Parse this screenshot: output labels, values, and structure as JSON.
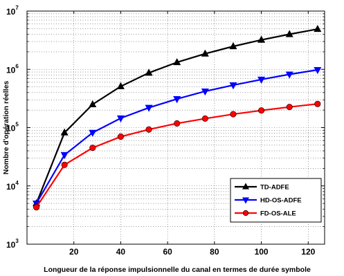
{
  "chart_data": {
    "type": "line",
    "title": "",
    "xlabel": "Longueur de la réponse impulsionnelle du canal en termes de durée symbole",
    "ylabel": "Nombre d'opération réelles",
    "xlim": [
      0,
      127
    ],
    "ylim": [
      1000,
      10000000
    ],
    "yscale": "log",
    "grid": true,
    "legend_position": "lower-right",
    "xticks": [
      20,
      40,
      60,
      80,
      100,
      120
    ],
    "yticks": [
      {
        "value": 1000,
        "base": "10",
        "exp": "3"
      },
      {
        "value": 10000,
        "base": "10",
        "exp": "4"
      },
      {
        "value": 100000,
        "base": "10",
        "exp": "5"
      },
      {
        "value": 1000000,
        "base": "10",
        "exp": "6"
      },
      {
        "value": 10000000,
        "base": "10",
        "exp": "7"
      }
    ],
    "x": [
      4,
      16,
      28,
      40,
      52,
      64,
      76,
      88,
      100,
      112,
      124
    ],
    "series": [
      {
        "name": "TD-ADFE",
        "color": "#000000",
        "marker": "triangle-up",
        "values": [
          5000,
          82000,
          250000,
          510000,
          870000,
          1320000,
          1850000,
          2480000,
          3200000,
          4000000,
          4900000
        ]
      },
      {
        "name": "HD-OS-ADFE",
        "color": "#0000ff",
        "marker": "triangle-down",
        "values": [
          5000,
          34000,
          82000,
          145000,
          220000,
          310000,
          420000,
          535000,
          670000,
          820000,
          980000
        ]
      },
      {
        "name": "FD-OS-ALE",
        "color": "#ff0000",
        "marker": "circle",
        "values": [
          4300,
          23000,
          45000,
          70000,
          93000,
          118000,
          143000,
          170000,
          197000,
          226000,
          255000
        ]
      }
    ]
  }
}
